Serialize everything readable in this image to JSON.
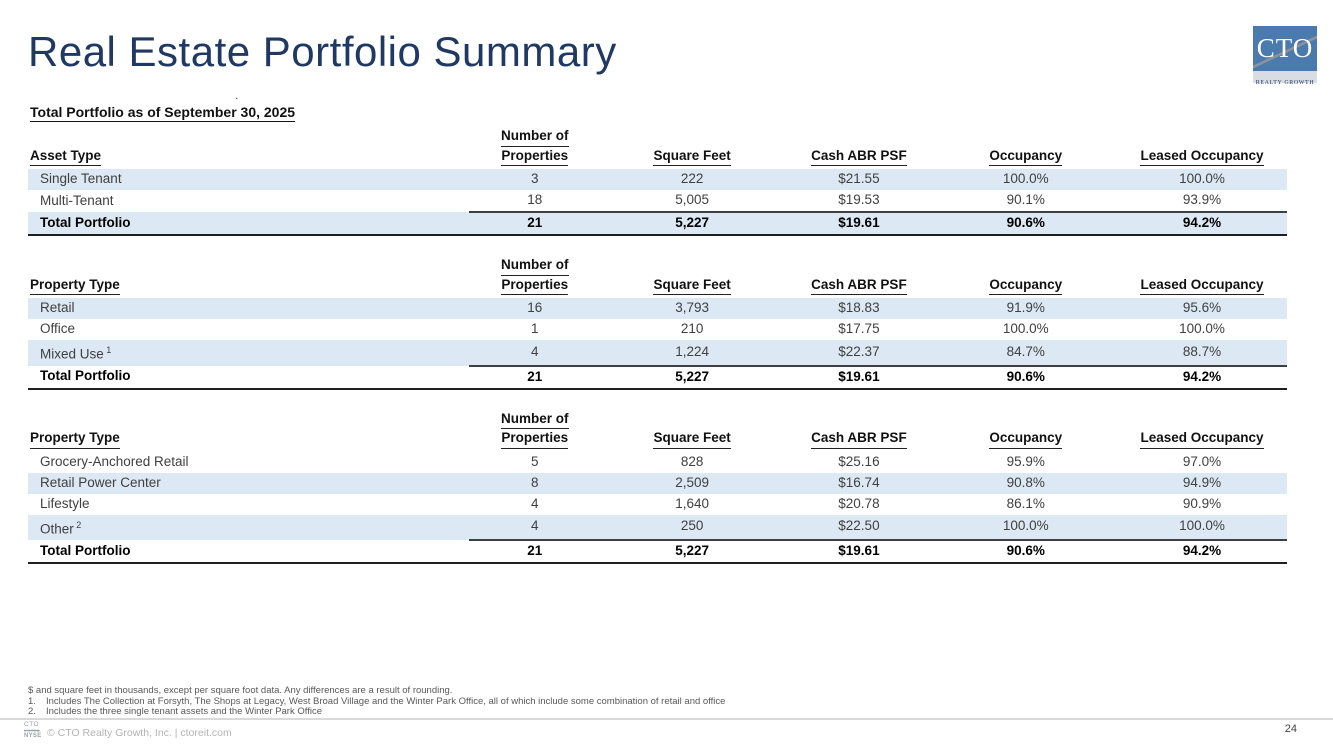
{
  "slide": {
    "title": "Real Estate Portfolio Summary",
    "section_heading": "Total Portfolio as of September 30, 2025",
    "stray_mark": ".",
    "page_number": "24"
  },
  "logo": {
    "text": "CTO",
    "subtext": "REALTY GROWTH",
    "blue": "#4a7aae"
  },
  "colors": {
    "title_navy": "#1f3864",
    "row_shade": "#dce8f3"
  },
  "tables": [
    {
      "label_header": "Asset Type",
      "columns": [
        [
          "Number of",
          "Properties"
        ],
        [
          "Square Feet"
        ],
        [
          "Cash ABR PSF"
        ],
        [
          "Occupancy"
        ],
        [
          "Leased Occupancy"
        ]
      ],
      "rows": [
        {
          "label": "Single Tenant",
          "sup": "",
          "shaded": true,
          "values": [
            "3",
            "222",
            "$21.55",
            "100.0%",
            "100.0%"
          ]
        },
        {
          "label": "Multi-Tenant",
          "sup": "",
          "shaded": false,
          "values": [
            "18",
            "5,005",
            "$19.53",
            "90.1%",
            "93.9%"
          ]
        }
      ],
      "total": {
        "label": "Total Portfolio",
        "sup": "",
        "shaded": true,
        "values": [
          "21",
          "5,227",
          "$19.61",
          "90.6%",
          "94.2%"
        ]
      }
    },
    {
      "label_header": "Property Type",
      "columns": [
        [
          "Number of",
          "Properties"
        ],
        [
          "Square Feet"
        ],
        [
          "Cash ABR PSF"
        ],
        [
          "Occupancy"
        ],
        [
          "Leased Occupancy"
        ]
      ],
      "rows": [
        {
          "label": "Retail",
          "sup": "",
          "shaded": true,
          "values": [
            "16",
            "3,793",
            "$18.83",
            "91.9%",
            "95.6%"
          ]
        },
        {
          "label": "Office",
          "sup": "",
          "shaded": false,
          "values": [
            "1",
            "210",
            "$17.75",
            "100.0%",
            "100.0%"
          ]
        },
        {
          "label": "Mixed Use",
          "sup": "1",
          "shaded": true,
          "values": [
            "4",
            "1,224",
            "$22.37",
            "84.7%",
            "88.7%"
          ]
        }
      ],
      "total": {
        "label": "Total Portfolio",
        "sup": "",
        "shaded": false,
        "values": [
          "21",
          "5,227",
          "$19.61",
          "90.6%",
          "94.2%"
        ]
      }
    },
    {
      "label_header": "Property Type",
      "columns": [
        [
          "Number of",
          "Properties"
        ],
        [
          "Square Feet"
        ],
        [
          "Cash ABR PSF"
        ],
        [
          "Occupancy"
        ],
        [
          "Leased Occupancy"
        ]
      ],
      "rows": [
        {
          "label": "Grocery-Anchored Retail",
          "sup": "",
          "shaded": false,
          "values": [
            "5",
            "828",
            "$25.16",
            "95.9%",
            "97.0%"
          ]
        },
        {
          "label": "Retail Power Center",
          "sup": "",
          "shaded": true,
          "values": [
            "8",
            "2,509",
            "$16.74",
            "90.8%",
            "94.9%"
          ]
        },
        {
          "label": "Lifestyle",
          "sup": "",
          "shaded": false,
          "values": [
            "4",
            "1,640",
            "$20.78",
            "86.1%",
            "90.9%"
          ]
        },
        {
          "label": "Other",
          "sup": "2",
          "shaded": true,
          "values": [
            "4",
            "250",
            "$22.50",
            "100.0%",
            "100.0%"
          ]
        }
      ],
      "total": {
        "label": "Total Portfolio",
        "sup": "",
        "shaded": false,
        "values": [
          "21",
          "5,227",
          "$19.61",
          "90.6%",
          "94.2%"
        ]
      }
    }
  ],
  "footnotes": {
    "intro": "$ and square feet in thousands, except per square foot data. Any differences are a result of rounding.",
    "items": [
      {
        "num": "1.",
        "text": "Includes The Collection at Forsyth, The Shops at Legacy, West Broad Village and the Winter Park Office, all of which include some combination of retail and office"
      },
      {
        "num": "2.",
        "text": "Includes the three single tenant assets and the Winter Park Office"
      }
    ]
  },
  "footer": {
    "badge_top": "CTO",
    "badge_mid": "LISTED",
    "badge_bottom": "NYSE",
    "copyright": "© CTO Realty Growth, Inc. | ctoreit.com"
  }
}
